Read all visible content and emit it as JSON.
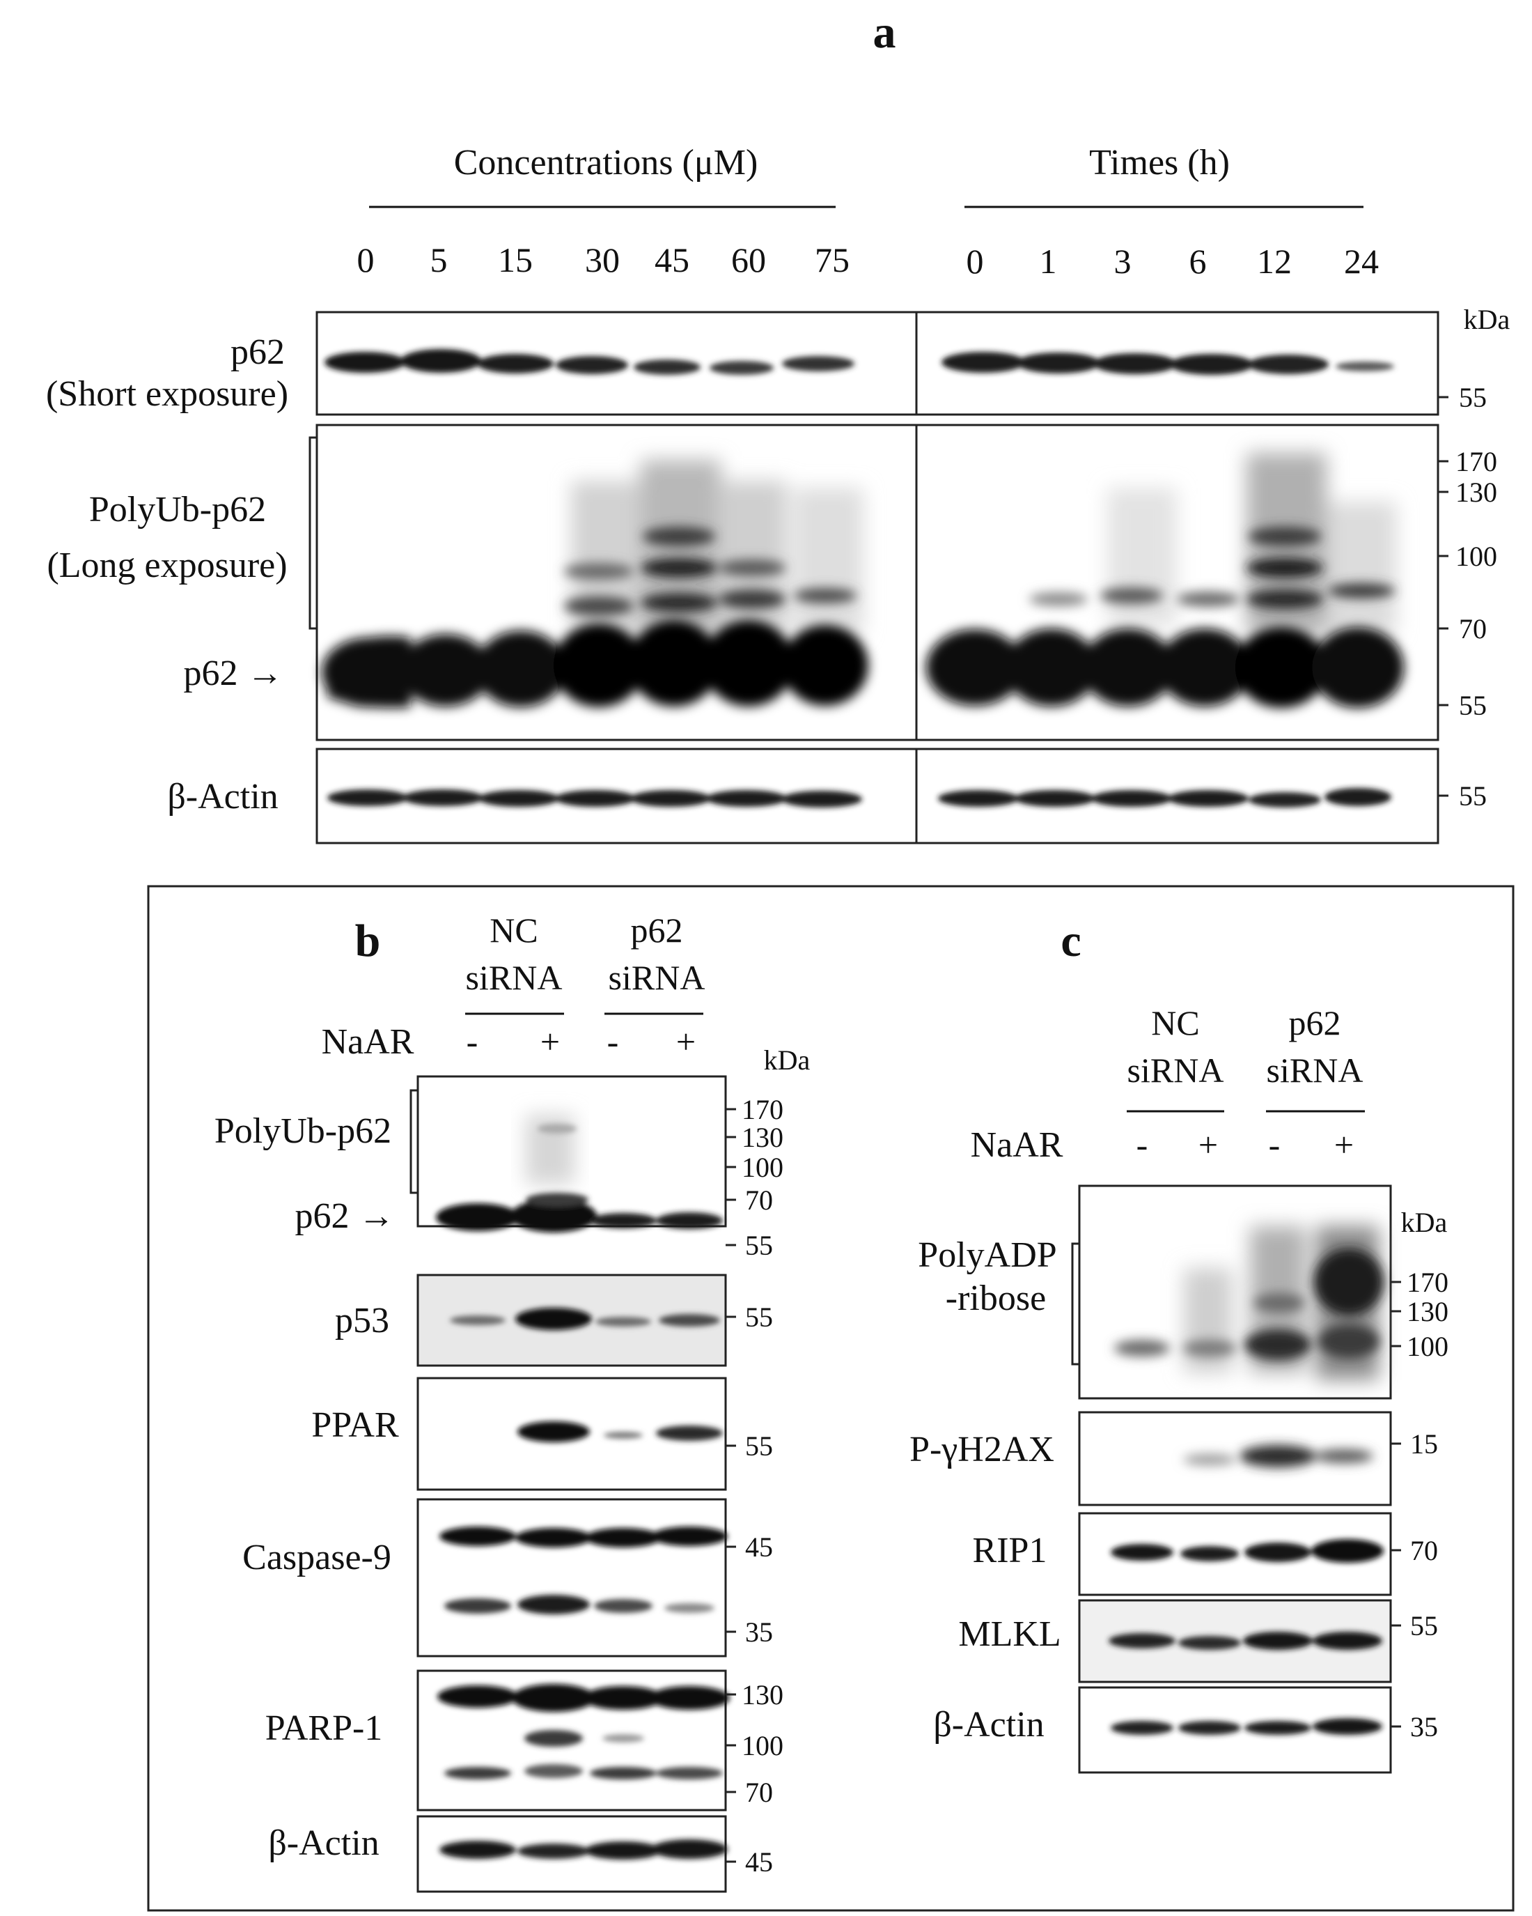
{
  "figure": {
    "panels": [
      {
        "letter": "a",
        "groups": [
          {
            "title": "Concentrations (μM)",
            "lanes": [
              "0",
              "5",
              "15",
              "30",
              "45",
              "60",
              "75"
            ]
          },
          {
            "title": "Times (h)",
            "lanes": [
              "0",
              "1",
              "3",
              "6",
              "12",
              "24"
            ]
          }
        ],
        "kda_unit": "kDa",
        "blots": [
          {
            "label": [
              "p62",
              "(Short exposure)"
            ],
            "markers": [
              "55"
            ]
          },
          {
            "label": [
              "PolyUb-p62",
              "(Long exposure)"
            ],
            "arrow_label": "p62 →",
            "markers": [
              "170",
              "130",
              "100",
              "70",
              "55"
            ]
          },
          {
            "label": [
              "β-Actin"
            ],
            "markers": [
              "55"
            ]
          }
        ]
      },
      {
        "letter": "b",
        "groups": [
          {
            "title": [
              "NC",
              "siRNA"
            ]
          },
          {
            "title": [
              "p62",
              "siRNA"
            ]
          }
        ],
        "treatment_label": "NaAR",
        "treatment_signs": [
          "-",
          "+",
          "-",
          "+"
        ],
        "kda_unit": "kDa",
        "blots": [
          {
            "label": [
              "PolyUb-p62"
            ],
            "arrow_label": "p62 →",
            "markers": [
              "170",
              "130",
              "100",
              "70",
              "55"
            ]
          },
          {
            "label": [
              "p53"
            ],
            "markers": [
              "55"
            ]
          },
          {
            "label": [
              "PPAR"
            ],
            "markers": [
              "55"
            ]
          },
          {
            "label": [
              "Caspase-9"
            ],
            "markers": [
              "45",
              "35"
            ]
          },
          {
            "label": [
              "PARP-1"
            ],
            "markers": [
              "130",
              "100",
              "70"
            ]
          },
          {
            "label": [
              "β-Actin"
            ],
            "markers": [
              "45"
            ]
          }
        ]
      },
      {
        "letter": "c",
        "groups": [
          {
            "title": [
              "NC",
              "siRNA"
            ]
          },
          {
            "title": [
              "p62",
              "siRNA"
            ]
          }
        ],
        "treatment_label": "NaAR",
        "treatment_signs": [
          "-",
          "+",
          "-",
          "+"
        ],
        "kda_unit": "kDa",
        "blots": [
          {
            "label": [
              "PolyADP",
              "-ribose"
            ],
            "markers": [
              "170",
              "130",
              "100"
            ]
          },
          {
            "label": [
              "P-γH2AX"
            ],
            "markers": [
              "15"
            ]
          },
          {
            "label": [
              "RIP1"
            ],
            "markers": [
              "70"
            ]
          },
          {
            "label": [
              "MLKL"
            ],
            "markers": [
              "55"
            ]
          },
          {
            "label": [
              "β-Actin"
            ],
            "markers": [
              "35"
            ]
          }
        ]
      }
    ]
  }
}
